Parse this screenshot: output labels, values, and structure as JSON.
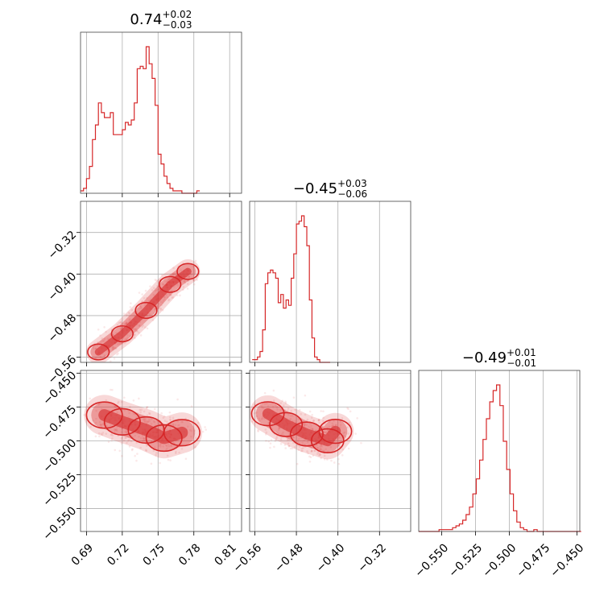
{
  "chart_data": {
    "type": "corner",
    "color": "#d62728",
    "grid": true,
    "parameters": [
      {
        "title_median": "0.74",
        "title_plus": "+0.02",
        "title_minus": "−0.03",
        "range": [
          0.685,
          0.82
        ],
        "ticks": [
          0.69,
          0.72,
          0.75,
          0.78,
          0.81
        ],
        "tick_labels": [
          "0.69",
          "0.72",
          "0.75",
          "0.78",
          "0.81"
        ],
        "hist": {
          "edges_start": 0.685,
          "bin_width": 0.0025,
          "counts": [
            1,
            2,
            6,
            11,
            22,
            28,
            37,
            33,
            31,
            31,
            33,
            24,
            24,
            24,
            26,
            29,
            28,
            30,
            37,
            51,
            52,
            51,
            60,
            53,
            47,
            36,
            16,
            12,
            7,
            4,
            2,
            1,
            1,
            1,
            0,
            0,
            0,
            0,
            0,
            1
          ]
        }
      },
      {
        "title_median": "−0.45",
        "title_plus": "+0.03",
        "title_minus": "−0.06",
        "range": [
          -0.57,
          -0.26
        ],
        "ticks": [
          -0.56,
          -0.48,
          -0.4,
          -0.32
        ],
        "tick_labels": [
          "−0.56",
          "−0.48",
          "−0.40",
          "−0.32"
        ],
        "hist": {
          "edges_start": -0.565,
          "bin_width": 0.005,
          "counts": [
            1,
            1,
            2,
            4,
            12,
            29,
            33,
            34,
            33,
            31,
            22,
            25,
            20,
            23,
            21,
            31,
            40,
            51,
            52,
            54,
            50,
            43,
            23,
            9,
            2,
            1,
            0,
            0,
            0,
            0
          ]
        }
      },
      {
        "title_median": "−0.49",
        "title_plus": "+0.01",
        "title_minus": "−0.01",
        "range": [
          -0.567,
          -0.448
        ],
        "ticks": [
          -0.55,
          -0.525,
          -0.5,
          -0.475,
          -0.45
        ],
        "tick_labels": [
          "−0.550",
          "−0.525",
          "−0.500",
          "−0.475",
          "−0.450"
        ],
        "hist": {
          "edges_start": -0.567,
          "bin_width": 0.0025,
          "counts": [
            0,
            0,
            0,
            0,
            0,
            0,
            1,
            1,
            1,
            1,
            2,
            3,
            4,
            6,
            9,
            13,
            20,
            28,
            38,
            49,
            60,
            69,
            75,
            78,
            67,
            48,
            33,
            20,
            11,
            5,
            2,
            1,
            0,
            0,
            1,
            0,
            0,
            0,
            0,
            0,
            0,
            0,
            0,
            0,
            0,
            0,
            0,
            0
          ]
        }
      }
    ],
    "pairs": [
      {
        "x_param": 0,
        "y_param": 1,
        "ridge": [
          [
            0.7,
            -0.55
          ],
          [
            0.72,
            -0.515
          ],
          [
            0.74,
            -0.47
          ],
          [
            0.76,
            -0.42
          ],
          [
            0.775,
            -0.395
          ]
        ],
        "spread_x": 0.006,
        "spread_y": 0.01
      },
      {
        "x_param": 0,
        "y_param": 2,
        "ridge": [
          [
            0.705,
            -0.481
          ],
          [
            0.72,
            -0.486
          ],
          [
            0.74,
            -0.492
          ],
          [
            0.755,
            -0.498
          ],
          [
            0.77,
            -0.494
          ]
        ],
        "spread_x": 0.01,
        "spread_y": 0.008
      },
      {
        "x_param": 1,
        "y_param": 2,
        "ridge": [
          [
            -0.535,
            -0.48
          ],
          [
            -0.5,
            -0.488
          ],
          [
            -0.46,
            -0.495
          ],
          [
            -0.42,
            -0.5
          ],
          [
            -0.405,
            -0.493
          ]
        ],
        "spread_x": 0.02,
        "spread_y": 0.008
      }
    ]
  }
}
